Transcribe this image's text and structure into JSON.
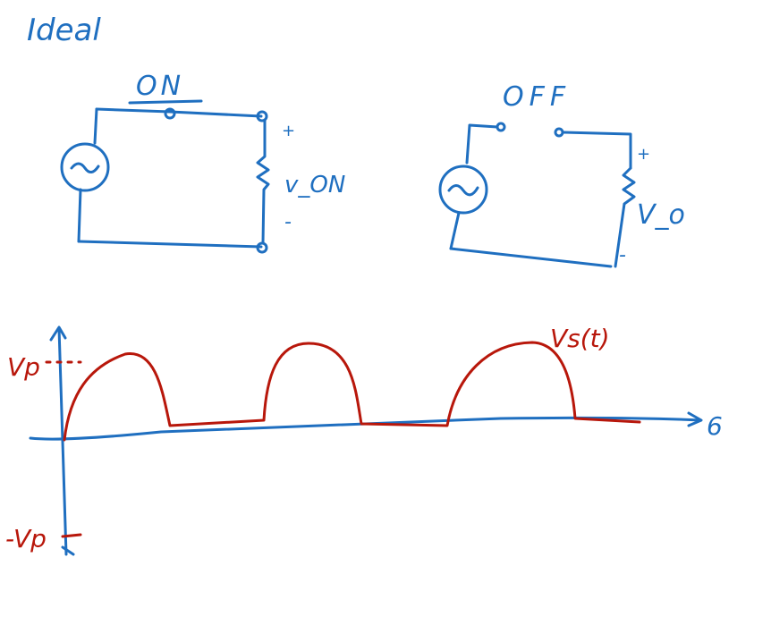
{
  "title": "Ideal",
  "on_circuit": {
    "label": "ON",
    "plus": "+",
    "minus": "-",
    "output_label": "v_ON"
  },
  "off_circuit": {
    "label": "OFF",
    "plus": "+",
    "minus": "-",
    "output_label": "V_o"
  },
  "graph": {
    "vp_label": "Vp",
    "neg_vp_label": "-Vp",
    "axis_label": "6",
    "curve_label": "Vs(t)"
  },
  "colors": {
    "blue": "#1f6fc0",
    "red": "#b8170b"
  }
}
